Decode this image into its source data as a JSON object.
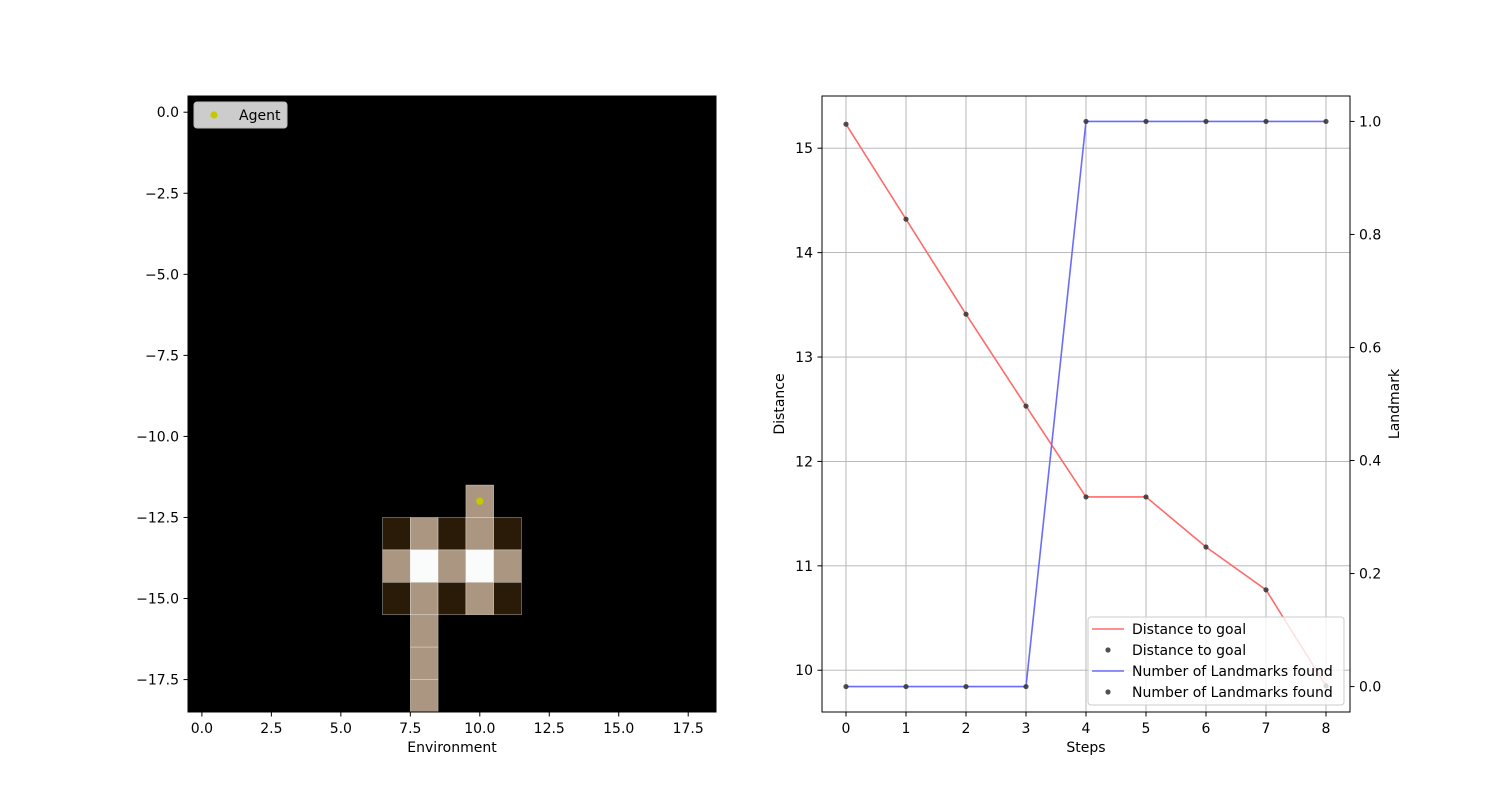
{
  "chart_data": [
    {
      "type": "heatmap",
      "xlabel": "Environment",
      "ylabel": "",
      "xlim": [
        -0.5,
        18.5
      ],
      "ylim": [
        -18.5,
        0.5
      ],
      "x_ticks": [
        "0.0",
        "2.5",
        "5.0",
        "7.5",
        "10.0",
        "12.5",
        "15.0",
        "17.5"
      ],
      "y_ticks": [
        "0.0",
        "−2.5",
        "−5.0",
        "−7.5",
        "−10.0",
        "−12.5",
        "−15.0",
        "−17.5"
      ],
      "background_color": "#000000",
      "cells": [
        {
          "x": 10,
          "y": -12,
          "color": "#ab9781"
        },
        {
          "x": 7,
          "y": -13,
          "color": "#2a1a08"
        },
        {
          "x": 8,
          "y": -13,
          "color": "#ab9781"
        },
        {
          "x": 9,
          "y": -13,
          "color": "#2a1a08"
        },
        {
          "x": 10,
          "y": -13,
          "color": "#ab9781"
        },
        {
          "x": 11,
          "y": -13,
          "color": "#2a1a08"
        },
        {
          "x": 7,
          "y": -14,
          "color": "#ab9781"
        },
        {
          "x": 8,
          "y": -14,
          "color": "#fafbfb"
        },
        {
          "x": 9,
          "y": -14,
          "color": "#ab9781"
        },
        {
          "x": 10,
          "y": -14,
          "color": "#fafbfb"
        },
        {
          "x": 11,
          "y": -14,
          "color": "#ab9781"
        },
        {
          "x": 7,
          "y": -15,
          "color": "#2a1a08"
        },
        {
          "x": 8,
          "y": -15,
          "color": "#ab9781"
        },
        {
          "x": 9,
          "y": -15,
          "color": "#2a1a08"
        },
        {
          "x": 10,
          "y": -15,
          "color": "#ab9781"
        },
        {
          "x": 11,
          "y": -15,
          "color": "#2a1a08"
        },
        {
          "x": 8,
          "y": -16,
          "color": "#ab9781"
        },
        {
          "x": 8,
          "y": -17,
          "color": "#ab9781"
        },
        {
          "x": 8,
          "y": -18,
          "color": "#ab9781"
        }
      ],
      "agent": {
        "x": 10,
        "y": -12,
        "color": "#c8c800"
      },
      "legend": {
        "label": "Agent",
        "position": "upper-left"
      }
    },
    {
      "type": "line",
      "xlabel": "Steps",
      "ylabel": "Distance",
      "y2label": "Landmark",
      "x": [
        0,
        1,
        2,
        3,
        4,
        5,
        6,
        7,
        8
      ],
      "xlim": [
        -0.4,
        8.4
      ],
      "ylim": [
        9.6,
        15.5
      ],
      "y2lim": [
        -0.045,
        1.045
      ],
      "x_ticks": [
        "0",
        "1",
        "2",
        "3",
        "4",
        "5",
        "6",
        "7",
        "8"
      ],
      "y_ticks": [
        "10",
        "11",
        "12",
        "13",
        "14",
        "15"
      ],
      "y2_ticks": [
        "0.0",
        "0.2",
        "0.4",
        "0.6",
        "0.8",
        "1.0"
      ],
      "grid": true,
      "series": [
        {
          "name": "Distance to goal",
          "axis": "left",
          "color": "#ff6b6b",
          "marker_color": "#333333",
          "values": [
            15.23,
            14.32,
            13.41,
            12.53,
            11.66,
            11.66,
            11.18,
            10.77,
            9.85
          ]
        },
        {
          "name": "Number of Landmarks found",
          "axis": "right",
          "color": "#6b6bff",
          "marker_color": "#333333",
          "values": [
            0,
            0,
            0,
            0,
            1,
            1,
            1,
            1,
            1
          ]
        }
      ],
      "legend": {
        "position": "lower-right",
        "entries": [
          "Distance to goal",
          "Distance to goal",
          "Number of Landmarks found",
          "Number of Landmarks found"
        ]
      }
    }
  ]
}
